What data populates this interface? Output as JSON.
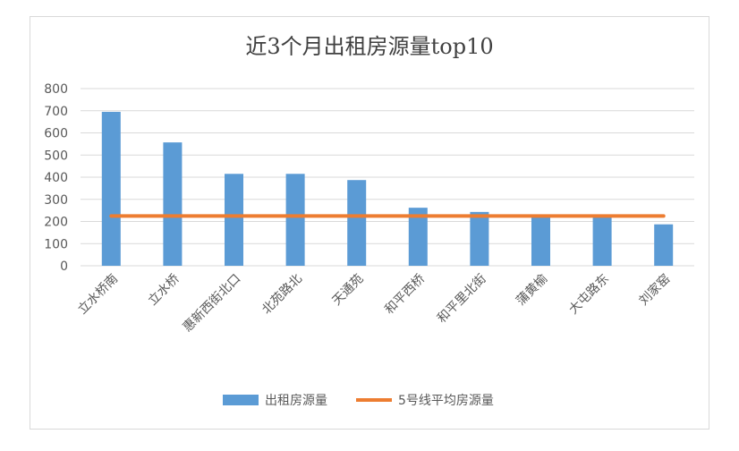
{
  "chart_data": {
    "type": "bar",
    "title": "近3个月出租房源量top10",
    "categories": [
      "立水桥南",
      "立水桥",
      "惠新西街北口",
      "北苑路北",
      "天通苑",
      "和平西桥",
      "和平里北街",
      "蒲黄榆",
      "大屯路东",
      "刘家窑"
    ],
    "series": [
      {
        "name": "出租房源量",
        "type": "bar",
        "color": "#5b9bd5",
        "values": [
          695,
          557,
          415,
          415,
          387,
          262,
          243,
          230,
          228,
          187
        ]
      },
      {
        "name": "5号线平均房源量",
        "type": "line",
        "color": "#ed7d31",
        "values": [
          225,
          225,
          225,
          225,
          225,
          225,
          225,
          225,
          225,
          225
        ]
      }
    ],
    "ylim": [
      0,
      800
    ],
    "yticks": [
      0,
      100,
      200,
      300,
      400,
      500,
      600,
      700,
      800
    ],
    "grid": true,
    "legend": "bottom"
  }
}
